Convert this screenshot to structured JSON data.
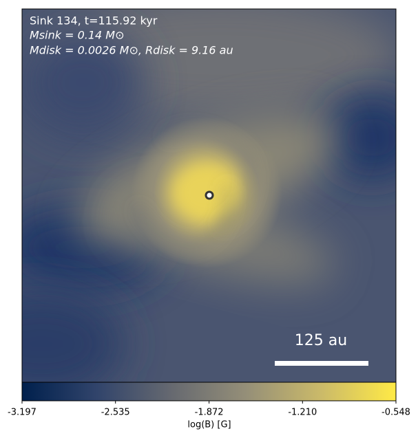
{
  "chart_data": {
    "type": "image",
    "annotations": [
      "Sink 134, t=115.92 kyr",
      "Msink = 0.14 M⊙",
      "Mdisk = 0.0026 M⊙, Rdisk = 9.16 au"
    ],
    "scale_bar": "125 au",
    "colorbar_label": "log(B) [G]",
    "clim": [
      -3.197,
      -0.548
    ],
    "cticks": [
      -3.197,
      -2.535,
      -1.872,
      {
        "value": -1.21,
        "label": "-1.210"
      },
      -0.548
    ],
    "colormap": [
      "#00204d",
      "#31446b",
      "#666970",
      "#958f78",
      "#cbba69",
      "#ffea46"
    ]
  }
}
